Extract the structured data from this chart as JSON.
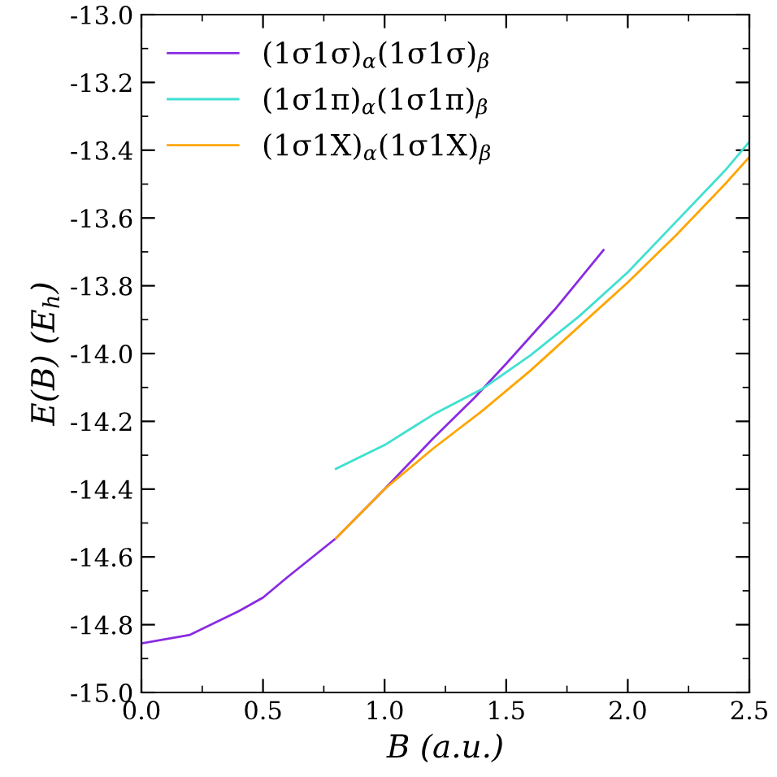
{
  "chart_data": {
    "type": "line",
    "xlabel": "B (a.u.)",
    "ylabel": "E(B) (E$_{h}$)",
    "xlim": [
      0,
      2.5
    ],
    "ylim": [
      -15.0,
      -13.0
    ],
    "xticks": [
      {
        "value": 0,
        "label": "0.0"
      },
      0.5,
      {
        "value": 1,
        "label": "1.0"
      },
      1.5,
      {
        "value": 2,
        "label": "2.0"
      },
      2.5
    ],
    "yticks": [
      {
        "value": -15,
        "label": "-15.0"
      },
      -14.8,
      -14.6,
      -14.4,
      -14.2,
      {
        "value": -14,
        "label": "-14.0"
      },
      -13.8,
      -13.6,
      -13.4,
      -13.2,
      {
        "value": -13,
        "label": "-13.0"
      }
    ],
    "legend": "top left",
    "grid": false,
    "marker": "none",
    "line_style": "solid",
    "series": [
      {
        "name": "(1σ1σ)$_{α}$(1σ1σ)$_{β}$",
        "color": "#8a2be2",
        "x": [
          0,
          0.2,
          0.4,
          0.5,
          0.6,
          0.8,
          1.0,
          1.2,
          1.37,
          1.5,
          1.7,
          1.9
        ],
        "values": [
          -14.855,
          -14.83,
          -14.76,
          -14.72,
          -14.66,
          -14.545,
          -14.4,
          -14.25,
          -14.13,
          -14.03,
          -13.87,
          -13.695
        ]
      },
      {
        "name": "(1σ1π)$_{α}$(1σ1π)$_{β}$",
        "color": "#40e0d0",
        "x": [
          0.8,
          1.0,
          1.2,
          1.4,
          1.6,
          1.8,
          2.0,
          2.2,
          2.4,
          2.5
        ],
        "values": [
          -14.34,
          -14.27,
          -14.18,
          -14.105,
          -14.005,
          -13.89,
          -13.76,
          -13.61,
          -13.46,
          -13.375
        ]
      },
      {
        "name": "(1σ1X)$_{α}$(1σ1X)$_{β}$",
        "color": "#ffa500",
        "x": [
          0.8,
          1.0,
          1.2,
          1.4,
          1.6,
          1.8,
          2.0,
          2.2,
          2.4,
          2.5
        ],
        "values": [
          -14.545,
          -14.4,
          -14.28,
          -14.17,
          -14.05,
          -13.92,
          -13.79,
          -13.65,
          -13.5,
          -13.42
        ]
      }
    ]
  }
}
